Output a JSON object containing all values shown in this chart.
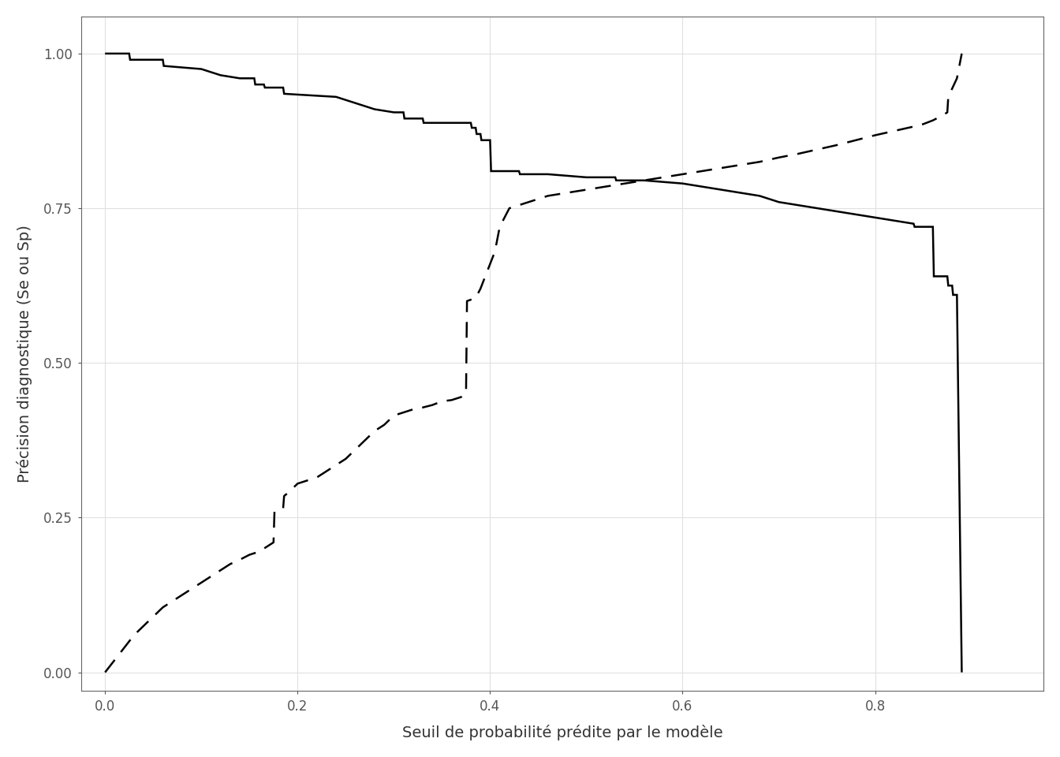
{
  "title": "",
  "xlabel": "Seuil de probabilité prédite par le modèle",
  "ylabel": "Précision diagnostique (Se ou Sp)",
  "xlim": [
    -0.025,
    0.975
  ],
  "ylim": [
    -0.03,
    1.06
  ],
  "xticks": [
    0.0,
    0.2,
    0.4,
    0.6,
    0.8
  ],
  "yticks": [
    0.0,
    0.25,
    0.5,
    0.75,
    1.0
  ],
  "background_color": "#ffffff",
  "panel_color": "#ffffff",
  "grid_color": "#e0e0e0",
  "line_color": "#000000",
  "sensitivity_x": [
    0.0,
    0.02,
    0.025,
    0.026,
    0.06,
    0.061,
    0.1,
    0.12,
    0.14,
    0.155,
    0.156,
    0.165,
    0.166,
    0.185,
    0.186,
    0.24,
    0.26,
    0.28,
    0.3,
    0.31,
    0.311,
    0.33,
    0.331,
    0.35,
    0.36,
    0.37,
    0.38,
    0.381,
    0.385,
    0.386,
    0.39,
    0.391,
    0.4,
    0.401,
    0.43,
    0.431,
    0.46,
    0.5,
    0.52,
    0.53,
    0.531,
    0.56,
    0.6,
    0.62,
    0.64,
    0.66,
    0.68,
    0.7,
    0.72,
    0.74,
    0.76,
    0.78,
    0.8,
    0.82,
    0.84,
    0.841,
    0.86,
    0.861,
    0.875,
    0.876,
    0.88,
    0.881,
    0.885,
    0.89
  ],
  "sensitivity_y": [
    1.0,
    1.0,
    1.0,
    0.99,
    0.99,
    0.98,
    0.975,
    0.965,
    0.96,
    0.96,
    0.95,
    0.95,
    0.945,
    0.945,
    0.935,
    0.93,
    0.92,
    0.91,
    0.905,
    0.905,
    0.895,
    0.895,
    0.888,
    0.888,
    0.888,
    0.888,
    0.888,
    0.88,
    0.88,
    0.87,
    0.87,
    0.86,
    0.86,
    0.81,
    0.81,
    0.805,
    0.805,
    0.8,
    0.8,
    0.8,
    0.795,
    0.795,
    0.79,
    0.785,
    0.78,
    0.775,
    0.77,
    0.76,
    0.755,
    0.75,
    0.745,
    0.74,
    0.735,
    0.73,
    0.725,
    0.72,
    0.72,
    0.64,
    0.64,
    0.625,
    0.625,
    0.61,
    0.61,
    0.0
  ],
  "specificity_x": [
    0.0,
    0.01,
    0.02,
    0.03,
    0.04,
    0.05,
    0.06,
    0.07,
    0.08,
    0.09,
    0.1,
    0.11,
    0.12,
    0.13,
    0.14,
    0.15,
    0.16,
    0.17,
    0.175,
    0.176,
    0.185,
    0.186,
    0.19,
    0.2,
    0.21,
    0.22,
    0.23,
    0.24,
    0.25,
    0.26,
    0.27,
    0.28,
    0.29,
    0.3,
    0.31,
    0.32,
    0.33,
    0.34,
    0.35,
    0.36,
    0.37,
    0.375,
    0.376,
    0.385,
    0.39,
    0.395,
    0.4,
    0.405,
    0.41,
    0.42,
    0.44,
    0.46,
    0.48,
    0.5,
    0.52,
    0.54,
    0.56,
    0.58,
    0.6,
    0.62,
    0.64,
    0.66,
    0.68,
    0.7,
    0.72,
    0.74,
    0.76,
    0.78,
    0.8,
    0.82,
    0.84,
    0.85,
    0.86,
    0.87,
    0.875,
    0.876,
    0.885,
    0.89
  ],
  "specificity_y": [
    0.0,
    0.02,
    0.04,
    0.06,
    0.075,
    0.09,
    0.105,
    0.115,
    0.125,
    0.135,
    0.145,
    0.155,
    0.165,
    0.175,
    0.182,
    0.19,
    0.195,
    0.205,
    0.21,
    0.26,
    0.265,
    0.285,
    0.29,
    0.305,
    0.31,
    0.315,
    0.325,
    0.335,
    0.345,
    0.36,
    0.375,
    0.39,
    0.4,
    0.415,
    0.42,
    0.425,
    0.428,
    0.432,
    0.438,
    0.44,
    0.445,
    0.45,
    0.6,
    0.605,
    0.62,
    0.64,
    0.66,
    0.68,
    0.72,
    0.75,
    0.76,
    0.77,
    0.775,
    0.78,
    0.785,
    0.79,
    0.795,
    0.8,
    0.805,
    0.81,
    0.815,
    0.82,
    0.825,
    0.832,
    0.838,
    0.845,
    0.852,
    0.86,
    0.868,
    0.875,
    0.882,
    0.886,
    0.892,
    0.9,
    0.905,
    0.93,
    0.96,
    1.0
  ]
}
